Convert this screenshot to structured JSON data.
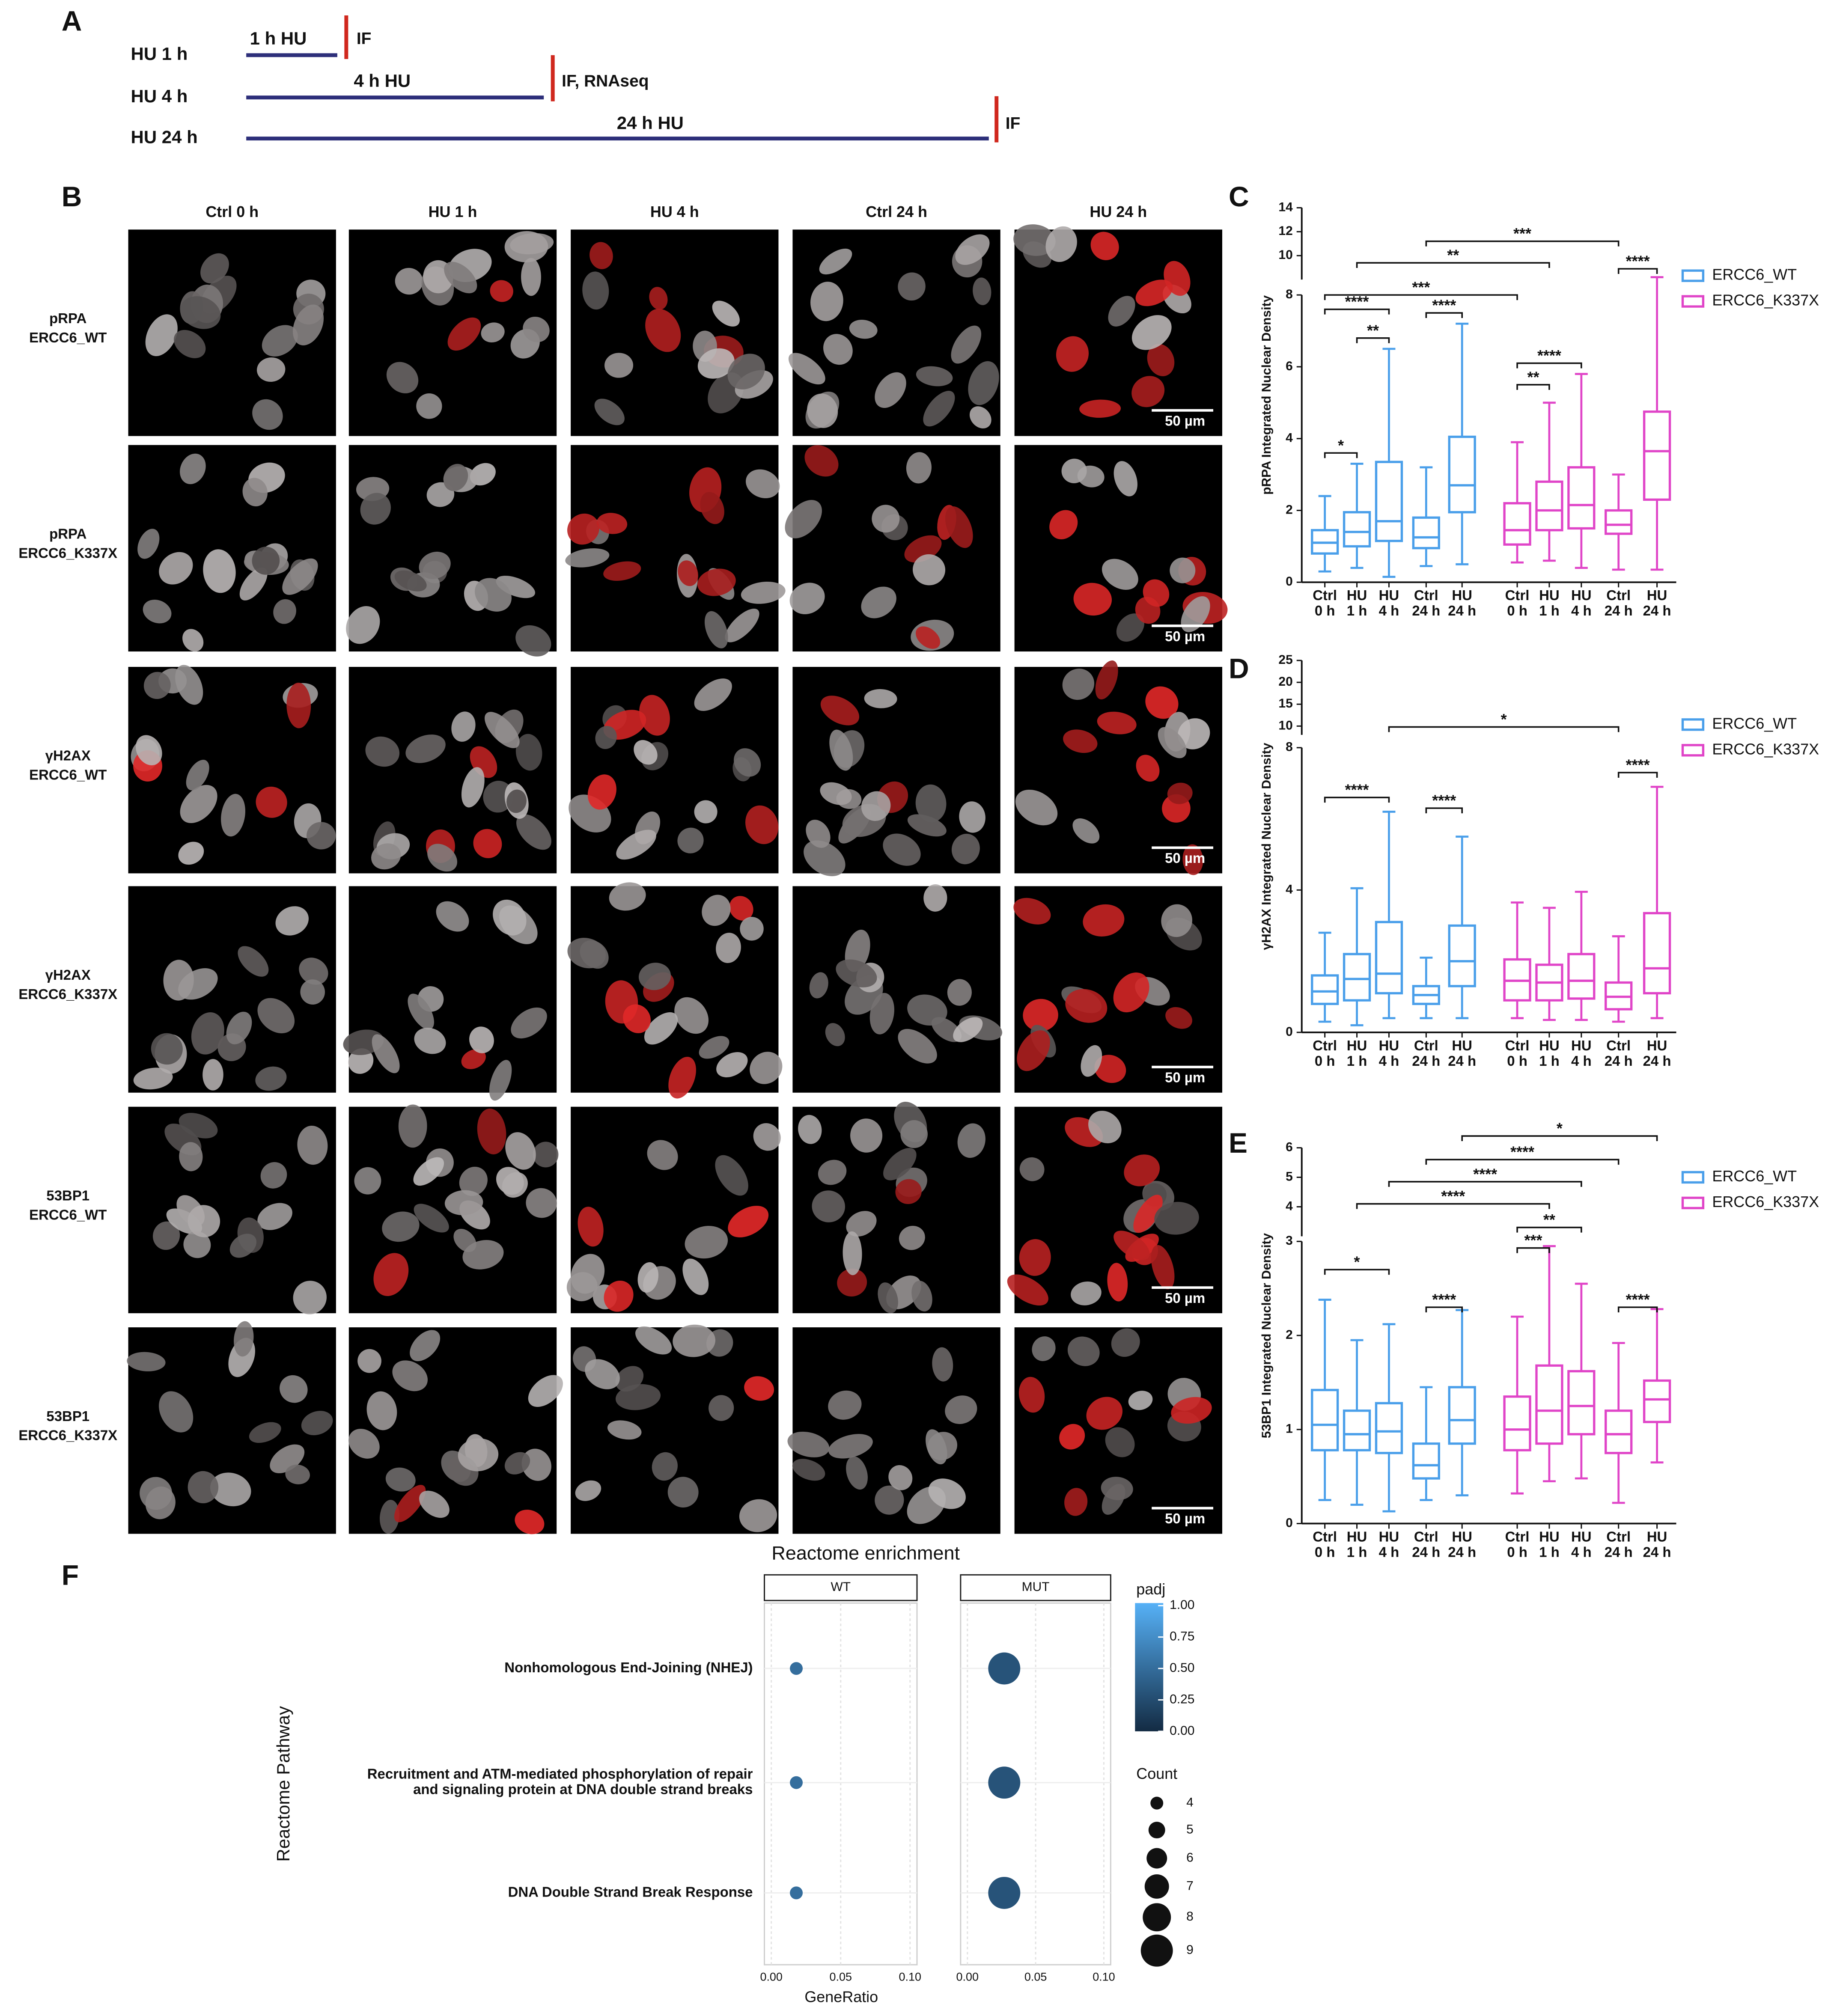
{
  "panels": [
    "A",
    "B",
    "C",
    "D",
    "E",
    "F"
  ],
  "timeline": {
    "rows": [
      {
        "label": "HU 1 h",
        "treatment": "1 h HU",
        "readout": "IF"
      },
      {
        "label": "HU 4 h",
        "treatment": "4 h HU",
        "readout": "IF, RNAseq"
      },
      {
        "label": "HU 24 h",
        "treatment": "24 h HU",
        "readout": "IF"
      }
    ]
  },
  "micrographs": {
    "columns": [
      "Ctrl 0 h",
      "HU 1 h",
      "HU 4 h",
      "Ctrl 24 h",
      "HU 24 h"
    ],
    "rows": [
      "pRPA\nERCC6_WT",
      "pRPA\nERCC6_K337X",
      "γH2AX\nERCC6_WT",
      "γH2AX\nERCC6_K337X",
      "53BP1\nERCC6_WT",
      "53BP1\nERCC6_K337X"
    ],
    "scale_bar": "50 µm"
  },
  "chart_data": [
    {
      "type": "box",
      "y_label": "pRPA Integrated Nuclear Density",
      "categories": [
        "Ctrl\n0 h",
        "HU\n1 h",
        "HU\n4 h",
        "Ctrl\n24 h",
        "HU\n24 h"
      ],
      "series": [
        {
          "name": "ERCC6_WT",
          "color": "#4a9fea",
          "values": [
            {
              "min": 0.3,
              "q1": 0.8,
              "median": 1.1,
              "q3": 1.45,
              "max": 2.4
            },
            {
              "min": 0.4,
              "q1": 1.0,
              "median": 1.4,
              "q3": 1.95,
              "max": 3.3
            },
            {
              "min": 0.15,
              "q1": 1.15,
              "median": 1.7,
              "q3": 3.35,
              "max": 6.5
            },
            {
              "min": 0.45,
              "q1": 0.95,
              "median": 1.25,
              "q3": 1.8,
              "max": 3.2
            },
            {
              "min": 0.5,
              "q1": 1.95,
              "median": 2.7,
              "q3": 4.05,
              "max": 7.2
            }
          ]
        },
        {
          "name": "ERCC6_K337X",
          "color": "#e045c8",
          "values": [
            {
              "min": 0.55,
              "q1": 1.05,
              "median": 1.45,
              "q3": 2.2,
              "max": 3.9
            },
            {
              "min": 0.6,
              "q1": 1.45,
              "median": 2.0,
              "q3": 2.8,
              "max": 5.0
            },
            {
              "min": 0.4,
              "q1": 1.5,
              "median": 2.15,
              "q3": 3.2,
              "max": 5.8
            },
            {
              "min": 0.35,
              "q1": 1.35,
              "median": 1.6,
              "q3": 2.0,
              "max": 3.0
            },
            {
              "min": 0.35,
              "q1": 2.3,
              "median": 3.65,
              "q3": 4.75,
              "max": 8.2
            }
          ]
        }
      ],
      "ylim": [
        0,
        14
      ],
      "ybreak": 8,
      "yticks": [
        0,
        2,
        4,
        6,
        8,
        10,
        12,
        14
      ],
      "significance": [
        "*",
        "**",
        "****",
        "****",
        "***",
        "**",
        "***",
        "**",
        "****",
        "****"
      ]
    },
    {
      "type": "box",
      "y_label": "γH2AX Integrated Nuclear Density",
      "categories": [
        "Ctrl\n0 h",
        "HU\n1 h",
        "HU\n4 h",
        "Ctrl\n24 h",
        "HU\n24 h"
      ],
      "series": [
        {
          "name": "ERCC6_WT",
          "color": "#4a9fea",
          "values": [
            {
              "min": 0.3,
              "q1": 0.8,
              "median": 1.15,
              "q3": 1.6,
              "max": 2.8
            },
            {
              "min": 0.2,
              "q1": 0.9,
              "median": 1.5,
              "q3": 2.2,
              "max": 4.05
            },
            {
              "min": 0.4,
              "q1": 1.1,
              "median": 1.65,
              "q3": 3.1,
              "max": 6.2
            },
            {
              "min": 0.4,
              "q1": 0.8,
              "median": 1.05,
              "q3": 1.3,
              "max": 2.1
            },
            {
              "min": 0.4,
              "q1": 1.3,
              "median": 2.0,
              "q3": 3.0,
              "max": 5.5
            }
          ]
        },
        {
          "name": "ERCC6_K337X",
          "color": "#e045c8",
          "values": [
            {
              "min": 0.4,
              "q1": 0.9,
              "median": 1.45,
              "q3": 2.05,
              "max": 3.65
            },
            {
              "min": 0.35,
              "q1": 0.9,
              "median": 1.4,
              "q3": 1.9,
              "max": 3.5
            },
            {
              "min": 0.35,
              "q1": 0.95,
              "median": 1.45,
              "q3": 2.2,
              "max": 3.95
            },
            {
              "min": 0.3,
              "q1": 0.65,
              "median": 1.0,
              "q3": 1.4,
              "max": 2.7
            },
            {
              "min": 0.4,
              "q1": 1.1,
              "median": 1.8,
              "q3": 3.35,
              "max": 6.9
            }
          ]
        }
      ],
      "ylim": [
        0,
        25
      ],
      "ybreak": 8,
      "yticks": [
        0,
        4,
        8,
        10,
        15,
        20,
        25
      ],
      "significance": [
        "****",
        "****",
        "*",
        "****"
      ]
    },
    {
      "type": "box",
      "y_label": "53BP1 Integrated Nuclear Density",
      "categories": [
        "Ctrl\n0 h",
        "HU\n1 h",
        "HU\n4 h",
        "Ctrl\n24 h",
        "HU\n24 h"
      ],
      "series": [
        {
          "name": "ERCC6_WT",
          "color": "#4a9fea",
          "values": [
            {
              "min": 0.25,
              "q1": 0.78,
              "median": 1.05,
              "q3": 1.42,
              "max": 2.38
            },
            {
              "min": 0.2,
              "q1": 0.78,
              "median": 0.95,
              "q3": 1.2,
              "max": 1.95
            },
            {
              "min": 0.13,
              "q1": 0.75,
              "median": 0.98,
              "q3": 1.28,
              "max": 2.12
            },
            {
              "min": 0.25,
              "q1": 0.48,
              "median": 0.62,
              "q3": 0.85,
              "max": 1.45
            },
            {
              "min": 0.3,
              "q1": 0.85,
              "median": 1.1,
              "q3": 1.45,
              "max": 2.27
            }
          ]
        },
        {
          "name": "ERCC6_K337X",
          "color": "#e045c8",
          "values": [
            {
              "min": 0.32,
              "q1": 0.78,
              "median": 1.0,
              "q3": 1.35,
              "max": 2.2
            },
            {
              "min": 0.45,
              "q1": 0.85,
              "median": 1.2,
              "q3": 1.68,
              "max": 2.95
            },
            {
              "min": 0.48,
              "q1": 0.95,
              "median": 1.25,
              "q3": 1.62,
              "max": 2.55
            },
            {
              "min": 0.22,
              "q1": 0.75,
              "median": 0.95,
              "q3": 1.2,
              "max": 1.92
            },
            {
              "min": 0.65,
              "q1": 1.08,
              "median": 1.32,
              "q3": 1.52,
              "max": 2.28
            }
          ]
        }
      ],
      "ylim": [
        0,
        6
      ],
      "ybreak": 3,
      "yticks": [
        0,
        1,
        2,
        3,
        4,
        5,
        6
      ],
      "significance": [
        "*",
        "****",
        "****",
        "****",
        "**",
        "***",
        "*",
        "****",
        "****"
      ]
    },
    {
      "type": "dot",
      "title": "Reactome enrichment",
      "x_label": "GeneRatio",
      "y_label": "Reactome Pathway",
      "categories": [
        "Nonhomologous End-Joining (NHEJ)",
        "Recruitment and ATM-mediated phosphorylation of repair\nand signaling protein at DNA double strand breaks",
        "DNA Double Strand Break Response"
      ],
      "facets": [
        {
          "name": "WT",
          "gene_ratio": [
            0.018,
            0.018,
            0.018
          ],
          "count": [
            4,
            4,
            4
          ],
          "padj": [
            0.5,
            0.5,
            0.5
          ]
        },
        {
          "name": "MUT",
          "gene_ratio": [
            0.027,
            0.027,
            0.027
          ],
          "count": [
            9,
            9,
            9
          ],
          "padj": [
            0.3,
            0.3,
            0.3
          ]
        }
      ],
      "xlim": [
        -0.005,
        0.105
      ],
      "xticks": [
        {
          "value": 0,
          "label": "0.00"
        },
        {
          "value": 0.05,
          "label": "0.05"
        },
        {
          "value": 0.1,
          "label": "0.10"
        }
      ],
      "color_scale": {
        "title": "padj",
        "low": "#132B43",
        "high": "#56B1F7",
        "ticks": [
          {
            "value": 0,
            "label": "0.00"
          },
          {
            "value": 0.25,
            "label": "0.25"
          },
          {
            "value": 0.5,
            "label": "0.50"
          },
          {
            "value": 0.75,
            "label": "0.75"
          },
          {
            "value": 1,
            "label": "1.00"
          }
        ]
      },
      "size_legend": {
        "title": "Count",
        "values": [
          4,
          5,
          6,
          7,
          8,
          9
        ]
      }
    }
  ]
}
